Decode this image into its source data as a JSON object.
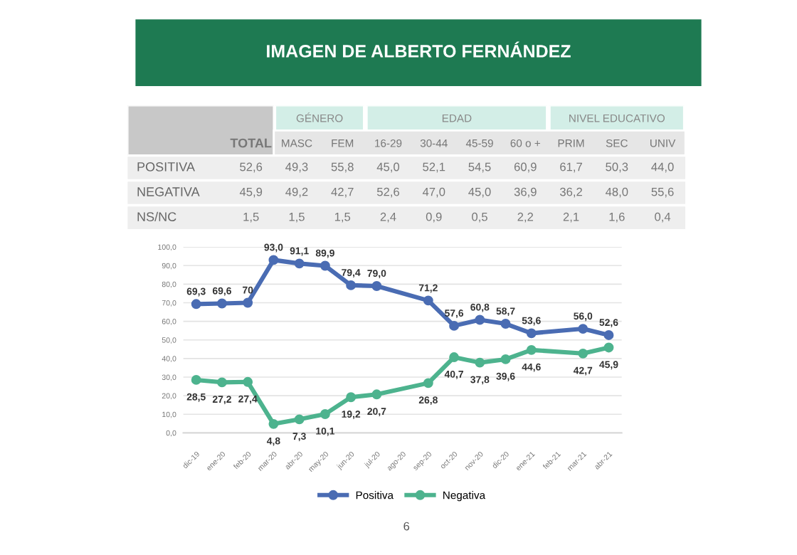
{
  "chart_data": [
    {
      "type": "other",
      "title": "IMAGEN DE ALBERTO FERNÁNDEZ",
      "annotations": [
        "GÉNERO",
        "EDAD",
        "NIVEL EDUCATIVO"
      ],
      "categories": [
        "TOTAL",
        "MASC",
        "FEM",
        "16-29",
        "30-44",
        "45-59",
        "60 o +",
        "PRIM",
        "SEC",
        "UNIV"
      ],
      "y_categories": [
        "POSITIVA",
        "NEGATIVA",
        "NS/NC"
      ],
      "cell_labels": [
        [
          "52,6",
          "49,3",
          "55,8",
          "45,0",
          "52,1",
          "54,5",
          "60,9",
          "61,7",
          "50,3",
          "44,0"
        ],
        [
          "45,9",
          "49,2",
          "42,7",
          "52,6",
          "47,0",
          "45,0",
          "36,9",
          "36,2",
          "48,0",
          "55,6"
        ],
        [
          "1,5",
          "1,5",
          "1,5",
          "2,4",
          "0,9",
          "0,5",
          "2,2",
          "2,1",
          "1,6",
          "0,4"
        ]
      ]
    },
    {
      "type": "line",
      "categories": [
        "dic-19",
        "ene-20",
        "feb-20",
        "mar-20",
        "abr-20",
        "may-20",
        "jun-20",
        "jul-20",
        "ago-20",
        "sep-20",
        "oct-20",
        "nov-20",
        "dic-20",
        "ene-21",
        "feb-21",
        "mar-21",
        "abr-21"
      ],
      "series": [
        {
          "name": "Positiva",
          "color": "#4a6cb3",
          "values": [
            69.3,
            69.6,
            70,
            93.0,
            91.1,
            89.9,
            79.4,
            79.0,
            null,
            71.2,
            57.6,
            60.8,
            58.7,
            53.6,
            null,
            56.0,
            52.6
          ],
          "value_labels": [
            "69,3",
            "69,6",
            "70",
            "93,0",
            "91,1",
            "89,9",
            "79,4",
            "79,0",
            null,
            "71,2",
            "57,6",
            "60,8",
            "58,7",
            "53,6",
            null,
            "56,0",
            "52,6"
          ]
        },
        {
          "name": "Negativa",
          "color": "#4db38e",
          "values": [
            28.5,
            27.2,
            27.4,
            4.8,
            7.3,
            10.1,
            19.2,
            20.7,
            null,
            26.8,
            40.7,
            37.8,
            39.6,
            44.6,
            null,
            42.7,
            45.9
          ],
          "value_labels": [
            "28,5",
            "27,2",
            "27,4",
            "4,8",
            "7,3",
            "10,1",
            "19,2",
            "20,7",
            null,
            "26,8",
            "40,7",
            "37,8",
            "39,6",
            "44,6",
            null,
            "42,7",
            "45,9"
          ]
        }
      ],
      "ylim": [
        0,
        100
      ],
      "yticks": [
        {
          "value": 0,
          "label": "0,0"
        },
        {
          "value": 10,
          "label": "10,0"
        },
        {
          "value": 20,
          "label": "20,0"
        },
        {
          "value": 30,
          "label": "30,0"
        },
        {
          "value": 40,
          "label": "40,0"
        },
        {
          "value": 50,
          "label": "50,0"
        },
        {
          "value": 60,
          "label": "60,0"
        },
        {
          "value": 70,
          "label": "70,0"
        },
        {
          "value": 80,
          "label": "80,0"
        },
        {
          "value": 90,
          "label": "90,0"
        },
        {
          "value": 100,
          "label": "100,0"
        }
      ],
      "grid": "y",
      "legend": "bottom",
      "marker": "circle",
      "line_style": "solid",
      "annotations": [
        "6"
      ]
    }
  ]
}
